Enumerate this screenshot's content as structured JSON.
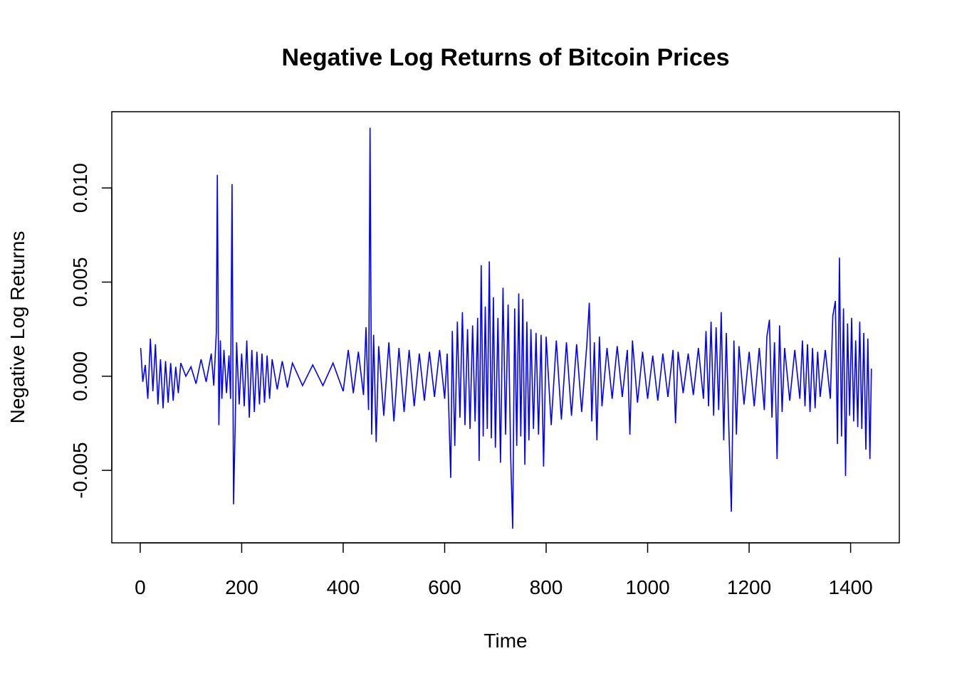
{
  "chart_data": {
    "type": "line",
    "title": "Negative Log Returns of Bitcoin Prices",
    "xlabel": "Time",
    "ylabel": "Negative Log Returns",
    "xlim": [
      -56,
      1496
    ],
    "ylim": [
      -0.00885,
      0.01405
    ],
    "xticks": [
      0,
      200,
      400,
      600,
      800,
      1000,
      1200,
      1400
    ],
    "xtick_labels": [
      "0",
      "200",
      "400",
      "600",
      "800",
      "1000",
      "1200",
      "1400"
    ],
    "yticks": [
      -0.005,
      0.0,
      0.005,
      0.01
    ],
    "ytick_labels": [
      "-0.005",
      "0.000",
      "0.005",
      "0.010"
    ],
    "grid": false,
    "legend": "none",
    "series": [
      {
        "color": "#0000ff",
        "x": [
          1,
          5,
          10,
          15,
          20,
          25,
          30,
          35,
          40,
          45,
          50,
          55,
          60,
          65,
          70,
          75,
          80,
          90,
          100,
          110,
          120,
          130,
          140,
          145,
          150,
          152,
          155,
          158,
          161,
          165,
          170,
          175,
          178,
          181,
          184,
          187,
          190,
          195,
          200,
          205,
          210,
          215,
          220,
          225,
          230,
          235,
          240,
          245,
          250,
          255,
          260,
          270,
          280,
          290,
          300,
          320,
          340,
          360,
          380,
          400,
          410,
          420,
          430,
          440,
          445,
          450,
          453,
          456,
          460,
          465,
          470,
          480,
          490,
          500,
          510,
          520,
          530,
          540,
          550,
          560,
          570,
          580,
          590,
          600,
          605,
          612,
          615,
          620,
          625,
          630,
          635,
          640,
          645,
          650,
          655,
          660,
          665,
          668,
          672,
          676,
          680,
          684,
          688,
          692,
          696,
          700,
          705,
          710,
          715,
          720,
          725,
          730,
          734,
          738,
          742,
          746,
          750,
          754,
          758,
          762,
          766,
          770,
          775,
          780,
          785,
          790,
          795,
          800,
          810,
          820,
          830,
          840,
          850,
          860,
          870,
          880,
          885,
          890,
          895,
          900,
          905,
          910,
          920,
          930,
          940,
          950,
          960,
          965,
          970,
          980,
          990,
          1000,
          1010,
          1020,
          1030,
          1040,
          1050,
          1055,
          1060,
          1070,
          1080,
          1090,
          1100,
          1110,
          1115,
          1120,
          1125,
          1130,
          1135,
          1140,
          1145,
          1150,
          1155,
          1160,
          1165,
          1170,
          1175,
          1180,
          1190,
          1200,
          1210,
          1220,
          1230,
          1235,
          1240,
          1245,
          1250,
          1255,
          1260,
          1265,
          1270,
          1280,
          1290,
          1300,
          1305,
          1310,
          1315,
          1320,
          1325,
          1330,
          1335,
          1340,
          1350,
          1360,
          1365,
          1370,
          1374,
          1378,
          1382,
          1386,
          1390,
          1394,
          1398,
          1402,
          1406,
          1410,
          1414,
          1418,
          1422,
          1426,
          1430,
          1434,
          1438,
          1441
        ],
        "y": [
          0.0015,
          -0.0003,
          0.0006,
          -0.0012,
          0.002,
          -0.0008,
          0.0017,
          -0.0015,
          0.0009,
          -0.0017,
          0.0008,
          -0.0014,
          0.0007,
          -0.0013,
          0.0005,
          -0.0009,
          0.0007,
          0.0,
          0.0005,
          -0.0004,
          0.0009,
          -0.0003,
          0.0012,
          -0.0005,
          0.0023,
          0.0107,
          -0.0026,
          0.0019,
          -0.0012,
          0.0014,
          -0.0009,
          0.0011,
          -0.0012,
          0.0102,
          -0.0068,
          -0.0028,
          0.0018,
          -0.0015,
          0.0012,
          -0.0016,
          0.0019,
          -0.0022,
          0.0014,
          -0.0019,
          0.0013,
          -0.0015,
          0.0012,
          -0.0014,
          0.0011,
          -0.0012,
          0.0009,
          -0.0007,
          0.0008,
          -0.0006,
          0.0007,
          -0.0005,
          0.0006,
          -0.0005,
          0.0007,
          -0.0008,
          0.0014,
          -0.0009,
          0.0013,
          -0.001,
          0.0026,
          -0.0018,
          0.0132,
          -0.0031,
          0.0022,
          -0.0035,
          0.0016,
          -0.0021,
          0.0018,
          -0.0024,
          0.0015,
          -0.0019,
          0.0014,
          -0.0016,
          0.0012,
          -0.0013,
          0.0013,
          -0.0011,
          0.0014,
          -0.0012,
          0.0012,
          -0.0054,
          0.0024,
          -0.0037,
          0.0029,
          -0.0022,
          0.0034,
          -0.0026,
          0.0025,
          -0.0028,
          0.0027,
          -0.0024,
          0.0031,
          -0.0045,
          0.0059,
          -0.0032,
          0.0037,
          -0.0028,
          0.0061,
          -0.0033,
          0.0042,
          -0.0038,
          0.0031,
          -0.0046,
          0.0047,
          -0.0031,
          0.0038,
          -0.0041,
          -0.0081,
          0.0036,
          -0.0037,
          0.0044,
          -0.0032,
          0.0041,
          -0.0047,
          0.0029,
          -0.0034,
          0.0025,
          -0.0028,
          0.0023,
          -0.0031,
          0.0022,
          -0.0048,
          0.0021,
          -0.0026,
          0.0019,
          -0.0023,
          0.0018,
          -0.0021,
          0.0017,
          -0.0019,
          0.0016,
          0.0039,
          -0.0024,
          0.0018,
          -0.0034,
          0.0021,
          -0.0016,
          0.0015,
          -0.0012,
          0.0016,
          -0.0011,
          0.0014,
          -0.0031,
          0.0019,
          -0.0014,
          0.0013,
          -0.0012,
          0.0011,
          -0.0013,
          0.0012,
          -0.0011,
          0.0014,
          -0.0025,
          0.0013,
          -0.0009,
          0.0012,
          -0.001,
          0.0015,
          -0.0012,
          0.0024,
          -0.0016,
          0.0029,
          -0.0021,
          0.0026,
          -0.0018,
          0.0034,
          -0.0034,
          0.0023,
          -0.0028,
          -0.0072,
          0.0019,
          -0.0031,
          0.0016,
          -0.0015,
          0.0013,
          -0.0016,
          0.0015,
          -0.0018,
          0.0021,
          0.003,
          -0.0022,
          0.0018,
          -0.0044,
          0.0027,
          -0.0019,
          0.0015,
          -0.0013,
          0.0014,
          -0.0012,
          0.0019,
          -0.0016,
          0.0017,
          -0.0019,
          0.0015,
          -0.0017,
          0.0013,
          -0.0011,
          0.0014,
          -0.0012,
          0.0032,
          0.004,
          -0.0036,
          0.0063,
          -0.0032,
          0.0036,
          -0.0053,
          0.0028,
          -0.0021,
          0.0031,
          -0.0024,
          0.0019,
          -0.0027,
          0.0029,
          -0.0028,
          0.0023,
          -0.0039,
          0.002,
          -0.0044,
          0.0004
        ]
      }
    ]
  }
}
